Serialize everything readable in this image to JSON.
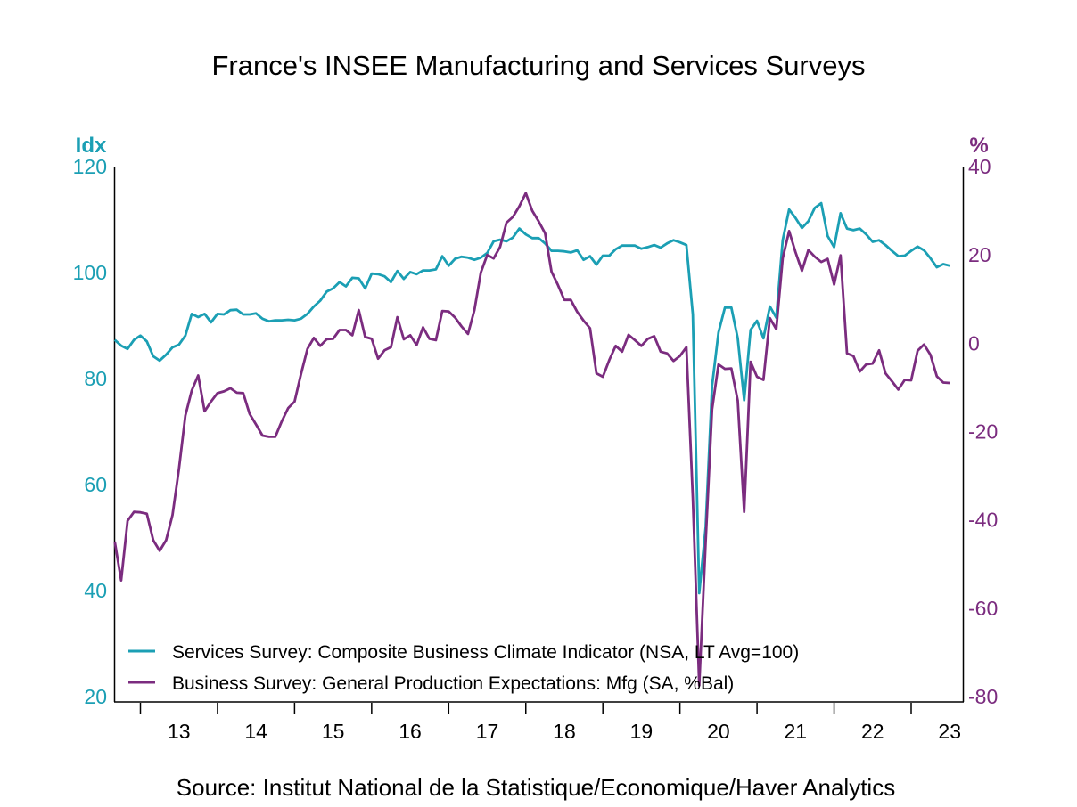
{
  "chart_data": {
    "type": "line",
    "title": "France's INSEE Manufacturing and Services Surveys",
    "source": "Source:  Institut National de la Statistique/Economique/Haver Analytics",
    "left_axis": {
      "unit_label": "Idx",
      "range": [
        20,
        120
      ],
      "ticks": [
        "120",
        "100",
        "80",
        "60",
        "40",
        "20"
      ],
      "color": "#1b9fb4"
    },
    "right_axis": {
      "unit_label": "%",
      "range": [
        -80,
        40
      ],
      "ticks": [
        "40",
        "20",
        "0",
        "-20",
        "-40",
        "-60",
        "-80"
      ],
      "color": "#7b2c7f"
    },
    "x_tick_labels": [
      "13",
      "14",
      "15",
      "16",
      "17",
      "18",
      "19",
      "20",
      "21",
      "22",
      "23"
    ],
    "grid": false,
    "legend_position": "bottom-left",
    "x": [
      "2012-09",
      "2012-10",
      "2012-11",
      "2012-12",
      "2013-01",
      "2013-02",
      "2013-03",
      "2013-04",
      "2013-05",
      "2013-06",
      "2013-07",
      "2013-08",
      "2013-09",
      "2013-10",
      "2013-11",
      "2013-12",
      "2014-01",
      "2014-02",
      "2014-03",
      "2014-04",
      "2014-05",
      "2014-06",
      "2014-07",
      "2014-08",
      "2014-09",
      "2014-10",
      "2014-11",
      "2014-12",
      "2015-01",
      "2015-02",
      "2015-03",
      "2015-04",
      "2015-05",
      "2015-06",
      "2015-07",
      "2015-08",
      "2015-09",
      "2015-10",
      "2015-11",
      "2015-12",
      "2016-01",
      "2016-02",
      "2016-03",
      "2016-04",
      "2016-05",
      "2016-06",
      "2016-07",
      "2016-08",
      "2016-09",
      "2016-10",
      "2016-11",
      "2016-12",
      "2017-01",
      "2017-02",
      "2017-03",
      "2017-04",
      "2017-05",
      "2017-06",
      "2017-07",
      "2017-08",
      "2017-09",
      "2017-10",
      "2017-11",
      "2017-12",
      "2018-01",
      "2018-02",
      "2018-03",
      "2018-04",
      "2018-05",
      "2018-06",
      "2018-07",
      "2018-08",
      "2018-09",
      "2018-10",
      "2018-11",
      "2018-12",
      "2019-01",
      "2019-02",
      "2019-03",
      "2019-04",
      "2019-05",
      "2019-06",
      "2019-07",
      "2019-08",
      "2019-09",
      "2019-10",
      "2019-11",
      "2019-12",
      "2020-01",
      "2020-02",
      "2020-03",
      "2020-04",
      "2020-05",
      "2020-06",
      "2020-07",
      "2020-08",
      "2020-09",
      "2020-10",
      "2020-11",
      "2020-12",
      "2021-01",
      "2021-02",
      "2021-03",
      "2021-04",
      "2021-05",
      "2021-06",
      "2021-07",
      "2021-08",
      "2021-09",
      "2021-10",
      "2021-11",
      "2021-12",
      "2022-01",
      "2022-02",
      "2022-03",
      "2022-04",
      "2022-05",
      "2022-06",
      "2022-07",
      "2022-08",
      "2022-09",
      "2022-10",
      "2022-11",
      "2022-12",
      "2023-01",
      "2023-02",
      "2023-03",
      "2023-04",
      "2023-05",
      "2023-06",
      "2023-07"
    ],
    "series": [
      {
        "name": "Services Survey: Composite Business Climate Indicator (NSA, LT Avg=100)",
        "axis": "left",
        "color": "#1b9fb4",
        "values": [
          87.3,
          86.2,
          85.6,
          87.3,
          88.1,
          87.0,
          84.2,
          83.4,
          84.5,
          85.9,
          86.4,
          88.1,
          92.2,
          91.6,
          92.2,
          90.6,
          92.2,
          92.1,
          92.9,
          93.0,
          92.1,
          92.1,
          92.3,
          91.3,
          90.8,
          91.0,
          91.0,
          91.1,
          91.0,
          91.3,
          92.2,
          93.6,
          94.7,
          96.4,
          97.0,
          98.2,
          97.4,
          99.0,
          98.9,
          97.0,
          99.8,
          99.7,
          99.3,
          98.2,
          100.3,
          98.8,
          100.1,
          99.7,
          100.4,
          100.4,
          100.6,
          103.1,
          101.3,
          102.6,
          103.0,
          102.8,
          102.4,
          102.8,
          103.7,
          105.9,
          106.2,
          105.9,
          106.6,
          108.3,
          107.2,
          106.5,
          106.5,
          105.5,
          104.1,
          104.1,
          104.0,
          103.8,
          104.2,
          102.4,
          103.1,
          101.5,
          103.2,
          103.2,
          104.4,
          105.1,
          105.1,
          105.1,
          104.5,
          104.8,
          105.2,
          104.7,
          105.5,
          106.1,
          105.7,
          105.2,
          92.1,
          39.5,
          52.0,
          78.6,
          88.7,
          93.4,
          93.4,
          87.6,
          75.9,
          89.2,
          90.9,
          87.6,
          93.6,
          91.5,
          106.1,
          111.9,
          110.3,
          108.4,
          109.7,
          112.2,
          113.1,
          106.9,
          104.8,
          111.2,
          108.3,
          108.0,
          108.3,
          107.2,
          105.8,
          106.1,
          105.2,
          104.1,
          103.1,
          103.2,
          104.1,
          104.9,
          104.2,
          102.7,
          101.0,
          101.6,
          101.3
        ]
      },
      {
        "name": "Business Survey: General Production Expectations: Mfg (SA, %Bal)",
        "axis": "right",
        "color": "#7b2c7f",
        "values": [
          -44.9,
          -53.7,
          -40.2,
          -38.2,
          -38.3,
          -38.6,
          -44.6,
          -47.0,
          -44.6,
          -38.9,
          -28.5,
          -16.4,
          -10.7,
          -7.3,
          -15.4,
          -13.2,
          -11.3,
          -10.9,
          -10.2,
          -11.2,
          -11.3,
          -16.0,
          -18.4,
          -20.9,
          -21.2,
          -21.2,
          -17.7,
          -14.7,
          -13.2,
          -7.0,
          -1.3,
          1.2,
          -0.6,
          0.9,
          1.0,
          3.0,
          3.0,
          1.8,
          7.5,
          1.4,
          1.0,
          -3.5,
          -1.6,
          -0.9,
          5.9,
          0.9,
          1.8,
          -0.4,
          3.6,
          1.0,
          0.7,
          7.3,
          7.2,
          5.8,
          3.8,
          2.1,
          7.5,
          16.0,
          20.0,
          19.2,
          21.8,
          27.3,
          28.6,
          31.0,
          34.0,
          30.0,
          27.6,
          24.9,
          16.2,
          13.2,
          9.8,
          9.8,
          7.1,
          5.1,
          3.4,
          -6.8,
          -7.6,
          -3.8,
          -0.6,
          -1.9,
          1.9,
          0.7,
          -0.6,
          1.0,
          1.6,
          -1.9,
          -2.3,
          -4.0,
          -2.9,
          -0.9,
          -35.0,
          -77.5,
          -45.0,
          -15.0,
          -4.8,
          -5.8,
          -5.7,
          -13.0,
          -38.2,
          -4.2,
          -7.6,
          -8.3,
          5.7,
          3.2,
          19.2,
          25.4,
          20.6,
          16.4,
          21.1,
          19.6,
          18.4,
          19.1,
          13.3,
          19.9,
          -2.3,
          -2.9,
          -6.4,
          -4.8,
          -4.6,
          -1.6,
          -6.8,
          -8.6,
          -10.5,
          -8.3,
          -8.4,
          -1.7,
          -0.3,
          -2.6,
          -7.5,
          -8.9,
          -9.0
        ]
      }
    ]
  }
}
